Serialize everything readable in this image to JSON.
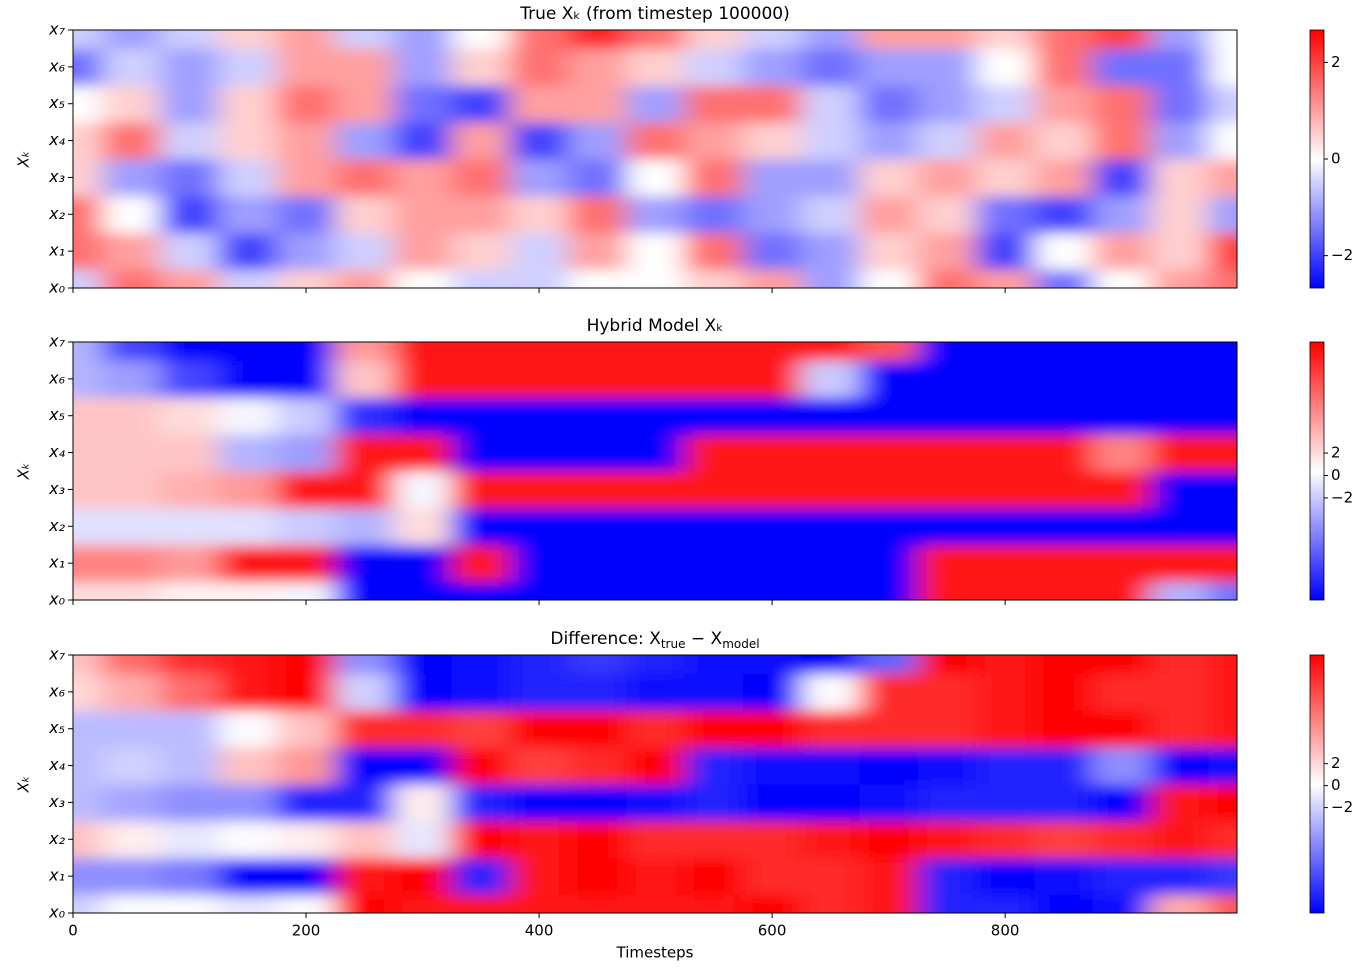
{
  "chart_data": [
    {
      "type": "heatmap",
      "title": "True Xₖ (from timestep 100000)",
      "ylabel": "Xₖ",
      "x": [
        0,
        50,
        100,
        150,
        200,
        250,
        300,
        350,
        400,
        450,
        500,
        550,
        600,
        650,
        700,
        750,
        800,
        850,
        900,
        950,
        999
      ],
      "xlim": [
        0,
        999
      ],
      "xticks": [
        0,
        200,
        400,
        600,
        800
      ],
      "ylim": [
        0,
        7
      ],
      "yticks": [
        {
          "value": 0,
          "label": "x₀"
        },
        {
          "value": 1,
          "label": "x₁"
        },
        {
          "value": 2,
          "label": "x₂"
        },
        {
          "value": 3,
          "label": "x₃"
        },
        {
          "value": 4,
          "label": "x₄"
        },
        {
          "value": 5,
          "label": "x₅"
        },
        {
          "value": 6,
          "label": "x₆"
        },
        {
          "value": 7,
          "label": "x₇"
        }
      ],
      "clim": [
        -2.67,
        2.67
      ],
      "cticks": [
        {
          "value": -2,
          "label": "−2"
        },
        0,
        2
      ],
      "z": [
        [
          -0.5,
          1.5,
          1,
          -0.5,
          0.5,
          1,
          0,
          -0.5,
          -0.5,
          0,
          0,
          0.5,
          1,
          -1,
          0,
          1.5,
          1,
          -1.5,
          0,
          1,
          1.5
        ],
        [
          1.5,
          1,
          -0.5,
          -2,
          -1,
          -0.5,
          1,
          0.5,
          -0.5,
          1,
          0,
          1.5,
          -1.5,
          -1,
          0.5,
          1,
          -2,
          0,
          1,
          0.5,
          2
        ],
        [
          1.5,
          0,
          -2,
          -1,
          -1.5,
          0.5,
          1,
          1,
          0.5,
          1.5,
          -1,
          -1.5,
          -1,
          -0.5,
          1,
          0.5,
          -1.5,
          -2,
          -1,
          0.5,
          -1
        ],
        [
          0.5,
          -1,
          -1.5,
          -0.5,
          1,
          1.5,
          1,
          1.5,
          -1,
          -1.5,
          0,
          1.5,
          -1,
          -1,
          0.5,
          1,
          0.5,
          1,
          -2,
          0.5,
          1
        ],
        [
          0.5,
          1.5,
          -0.5,
          0.5,
          1,
          -1,
          -2,
          1,
          -2,
          -1,
          1.5,
          1,
          0.5,
          -0.5,
          -1,
          -0.5,
          1,
          0.5,
          1.5,
          -1,
          0
        ],
        [
          0,
          0.5,
          -1,
          0.5,
          1.5,
          1,
          -1.5,
          -2,
          1,
          1,
          -1,
          1.5,
          1.5,
          -0.5,
          -1.5,
          -1,
          -0.5,
          1,
          1.5,
          -1.5,
          -0.5
        ],
        [
          -1.5,
          -0.5,
          -1,
          -0.5,
          1,
          1,
          -1,
          0.5,
          1.5,
          1,
          0.5,
          -0.5,
          -1,
          -1.5,
          -1,
          -1,
          0,
          1.5,
          -1.5,
          -1.5,
          0
        ],
        [
          -0.5,
          -1,
          -0.5,
          0.5,
          1,
          -0.5,
          -1,
          0,
          1.5,
          2.3,
          1.5,
          0.5,
          -0.5,
          -1,
          1,
          1,
          0.5,
          1.5,
          2,
          -1,
          0
        ]
      ]
    },
    {
      "type": "heatmap",
      "title": "Hybrid Model Xₖ",
      "ylabel": "Xₖ",
      "x": [
        0,
        50,
        100,
        150,
        200,
        250,
        300,
        350,
        400,
        450,
        500,
        550,
        600,
        650,
        700,
        750,
        800,
        850,
        900,
        950,
        999
      ],
      "xlim": [
        0,
        999
      ],
      "xticks": [
        0,
        200,
        400,
        600,
        800
      ],
      "ylim": [
        0,
        7
      ],
      "yticks": [
        {
          "value": 0,
          "label": "x₀"
        },
        {
          "value": 1,
          "label": "x₁"
        },
        {
          "value": 2,
          "label": "x₂"
        },
        {
          "value": 3,
          "label": "x₃"
        },
        {
          "value": 4,
          "label": "x₄"
        },
        {
          "value": 5,
          "label": "x₅"
        },
        {
          "value": 6,
          "label": "x₆"
        },
        {
          "value": 7,
          "label": "x₇"
        }
      ],
      "clim": [
        -11.1,
        11.9
      ],
      "cticks": [
        {
          "value": -2,
          "label": "−2"
        },
        0,
        2
      ],
      "z": [
        [
          2,
          2,
          1,
          1,
          0,
          -11,
          -11,
          -11,
          -11,
          -11,
          -11,
          -11,
          -11,
          -11,
          -11,
          11,
          11,
          11,
          11,
          -3,
          -6
        ],
        [
          6,
          6,
          5,
          11,
          11,
          -11,
          -11,
          11,
          -11,
          -11,
          -11,
          -11,
          -11,
          -11,
          -11,
          11,
          11,
          11,
          11,
          11,
          11
        ],
        [
          -1,
          -1,
          -1,
          -1,
          -2,
          -3,
          2,
          -11,
          -11,
          -11,
          -11,
          -11,
          -11,
          -11,
          -11,
          -11,
          -11,
          -11,
          -11,
          -11,
          -11
        ],
        [
          3,
          3,
          4,
          5,
          11,
          11,
          0,
          11,
          11,
          11,
          11,
          11,
          11,
          11,
          11,
          11,
          11,
          11,
          11,
          -11,
          -11
        ],
        [
          3,
          3,
          3,
          -3,
          -4,
          11,
          11,
          -11,
          -11,
          -11,
          -11,
          11,
          11,
          11,
          11,
          11,
          11,
          11,
          6,
          11,
          11
        ],
        [
          3,
          3,
          2,
          0,
          -2,
          -9,
          -11,
          -11,
          -11,
          -11,
          -11,
          -11,
          -11,
          -11,
          -11,
          -11,
          -11,
          -11,
          -11,
          -11,
          -11
        ],
        [
          -3,
          -4,
          -8,
          -11,
          -11,
          3,
          11,
          11,
          11,
          11,
          11,
          11,
          11,
          -2,
          -11,
          -11,
          -11,
          -11,
          -11,
          -11,
          -11
        ],
        [
          -3,
          -8,
          -11,
          -11,
          -11,
          5,
          11,
          11,
          11,
          11,
          11,
          11,
          11,
          11,
          8,
          -11,
          -11,
          -11,
          -11,
          -11,
          -11
        ]
      ]
    },
    {
      "type": "heatmap",
      "title": [
        "Difference: X",
        "true",
        " − X",
        "model"
      ],
      "ylabel": "Xₖ",
      "xlabel": "Timesteps",
      "x": [
        0,
        50,
        100,
        150,
        200,
        250,
        300,
        350,
        400,
        450,
        500,
        550,
        600,
        650,
        700,
        750,
        800,
        850,
        900,
        950,
        999
      ],
      "xlim": [
        0,
        999
      ],
      "xticks": [
        0,
        200,
        400,
        600,
        800
      ],
      "ylim": [
        0,
        7
      ],
      "yticks": [
        {
          "value": 0,
          "label": "x₀"
        },
        {
          "value": 1,
          "label": "x₁"
        },
        {
          "value": 2,
          "label": "x₂"
        },
        {
          "value": 3,
          "label": "x₃"
        },
        {
          "value": 4,
          "label": "x₄"
        },
        {
          "value": 5,
          "label": "x₅"
        },
        {
          "value": 6,
          "label": "x₆"
        },
        {
          "value": 7,
          "label": "x₇"
        }
      ],
      "clim": [
        -11.6,
        11.9
      ],
      "cticks": [
        {
          "value": -2,
          "label": "−2"
        },
        0,
        2
      ],
      "z": [
        [
          -2,
          0,
          0,
          -1,
          0,
          12,
          11,
          11,
          11,
          11,
          11,
          11,
          12,
          10,
          11,
          -10,
          -10,
          -12,
          -11,
          4,
          8
        ],
        [
          -5,
          -5,
          -6,
          -13,
          -12,
          11,
          12,
          -10,
          11,
          12,
          11,
          12,
          10,
          10,
          11,
          -10,
          -13,
          -11,
          -10,
          -10,
          -9
        ],
        [
          3,
          1,
          -1,
          0,
          1,
          3,
          -1,
          12,
          11,
          12,
          10,
          10,
          10,
          11,
          12,
          11,
          10,
          9,
          10,
          11,
          10
        ],
        [
          -3,
          -4,
          -5,
          -5,
          -10,
          -10,
          1,
          -10,
          -12,
          -12,
          -11,
          -10,
          -12,
          -12,
          -11,
          -10,
          -10,
          -10,
          -13,
          11,
          12
        ],
        [
          -3,
          -2,
          -3,
          3,
          5,
          -12,
          -13,
          12,
          9,
          10,
          12,
          -10,
          -11,
          -11,
          -12,
          -11,
          -10,
          -10,
          -5,
          -12,
          -11
        ],
        [
          -3,
          -3,
          -3,
          0,
          3,
          10,
          10,
          9,
          12,
          12,
          10,
          12,
          12,
          10,
          10,
          10,
          11,
          12,
          12,
          10,
          11
        ],
        [
          2,
          4,
          7,
          11,
          12,
          -2,
          -12,
          -11,
          -10,
          -10,
          -11,
          -11,
          -12,
          0,
          10,
          10,
          11,
          12,
          10,
          10,
          11
        ],
        [
          3,
          7,
          10,
          11,
          12,
          -5,
          -12,
          -11,
          -10,
          -9,
          -10,
          -11,
          -11,
          -12,
          -7,
          12,
          11,
          12,
          13,
          10,
          11
        ]
      ]
    }
  ]
}
